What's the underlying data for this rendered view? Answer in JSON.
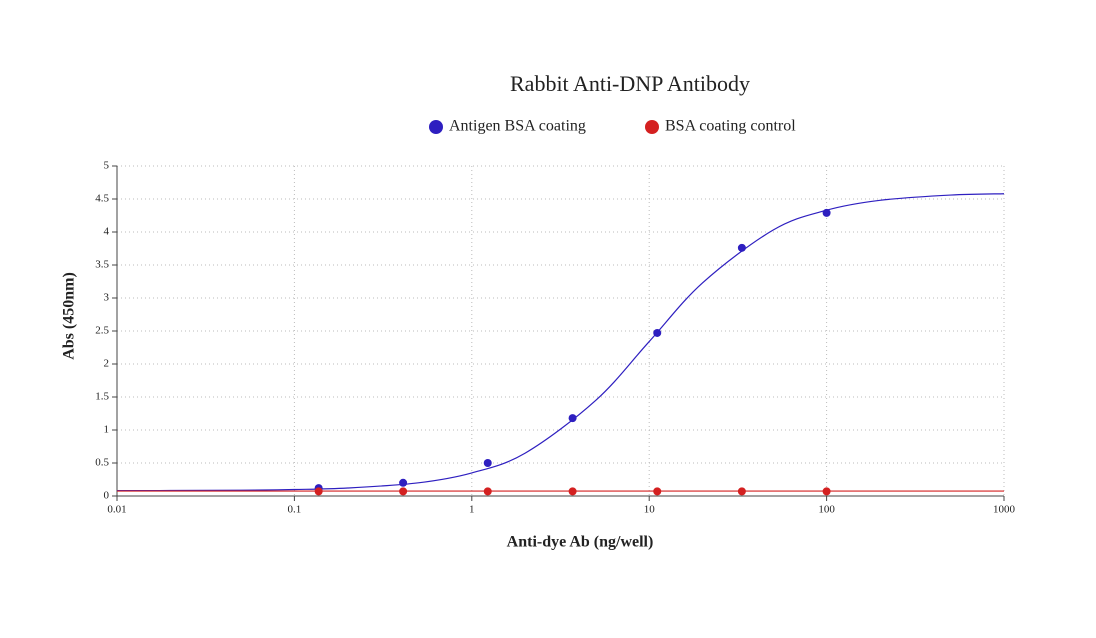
{
  "chart_data": {
    "type": "scatter",
    "title": "Rabbit Anti-DNP Antibody",
    "x_label": "Anti-dye Ab (ng/well)",
    "y_label": "Abs (450nm)",
    "xscale": "log",
    "grid": true,
    "xlim": [
      0.01,
      1000
    ],
    "xticks": [
      0.01,
      0.1,
      1,
      10,
      100,
      1000
    ],
    "ylim": [
      0,
      5
    ],
    "yticks": [
      0,
      0.5,
      1,
      1.5,
      2,
      2.5,
      3,
      3.5,
      4,
      4.5,
      5
    ],
    "series": [
      {
        "name": "Antigen BSA coating",
        "color": "#2e1fc0",
        "x": [
          0.137,
          0.41,
          1.23,
          3.7,
          11.1,
          33.3,
          100
        ],
        "values": [
          0.12,
          0.2,
          0.5,
          1.18,
          2.47,
          3.76,
          4.29
        ],
        "fit": {
          "x": [
            0.01,
            0.02,
            0.05,
            0.1,
            0.2,
            0.5,
            1,
            2,
            5,
            10,
            20,
            50,
            100,
            200,
            500,
            1000
          ],
          "values": [
            0.081,
            0.083,
            0.088,
            0.098,
            0.121,
            0.2,
            0.35,
            0.65,
            1.45,
            2.34,
            3.23,
            4.03,
            4.33,
            4.48,
            4.56,
            4.58
          ]
        }
      },
      {
        "name": "BSA coating control",
        "color": "#d42020",
        "x": [
          0.137,
          0.41,
          1.23,
          3.7,
          11.1,
          33.3,
          100
        ],
        "values": [
          0.07,
          0.07,
          0.07,
          0.07,
          0.07,
          0.07,
          0.07
        ],
        "fit": {
          "x": [
            0.01,
            1000
          ],
          "values": [
            0.075,
            0.075
          ]
        }
      }
    ]
  }
}
